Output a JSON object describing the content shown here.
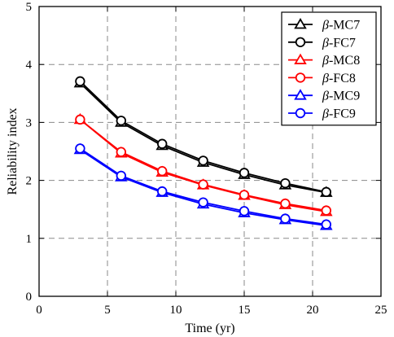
{
  "chart_data": {
    "type": "line",
    "title": "",
    "xlabel": "Time (yr)",
    "ylabel": "Reliability index",
    "xlim": [
      0,
      25
    ],
    "ylim": [
      0,
      5
    ],
    "xticks": [
      0,
      5,
      10,
      15,
      20,
      25
    ],
    "yticks": [
      0,
      1,
      2,
      3,
      4,
      5
    ],
    "grid": true,
    "legend_position": "top-right",
    "x": [
      3,
      6,
      9,
      12,
      15,
      18,
      21
    ],
    "series": [
      {
        "name": "β-MC7",
        "marker": "triangle",
        "color": "#000000",
        "values": [
          3.68,
          3.0,
          2.6,
          2.31,
          2.1,
          1.92,
          1.79
        ]
      },
      {
        "name": "β-FC7",
        "marker": "circle",
        "color": "#000000",
        "values": [
          3.71,
          3.03,
          2.63,
          2.34,
          2.13,
          1.95,
          1.8
        ]
      },
      {
        "name": "β-MC8",
        "marker": "triangle",
        "color": "#ff0000",
        "values": [
          3.05,
          2.47,
          2.14,
          1.92,
          1.74,
          1.58,
          1.46
        ]
      },
      {
        "name": "β-FC8",
        "marker": "circle",
        "color": "#ff0000",
        "values": [
          3.05,
          2.49,
          2.16,
          1.93,
          1.75,
          1.6,
          1.48
        ]
      },
      {
        "name": "β-MC9",
        "marker": "triangle",
        "color": "#0000ff",
        "values": [
          2.53,
          2.06,
          1.79,
          1.59,
          1.44,
          1.32,
          1.22
        ]
      },
      {
        "name": "β-FC9",
        "marker": "circle",
        "color": "#0000ff",
        "values": [
          2.55,
          2.08,
          1.81,
          1.62,
          1.47,
          1.34,
          1.24
        ]
      }
    ]
  }
}
